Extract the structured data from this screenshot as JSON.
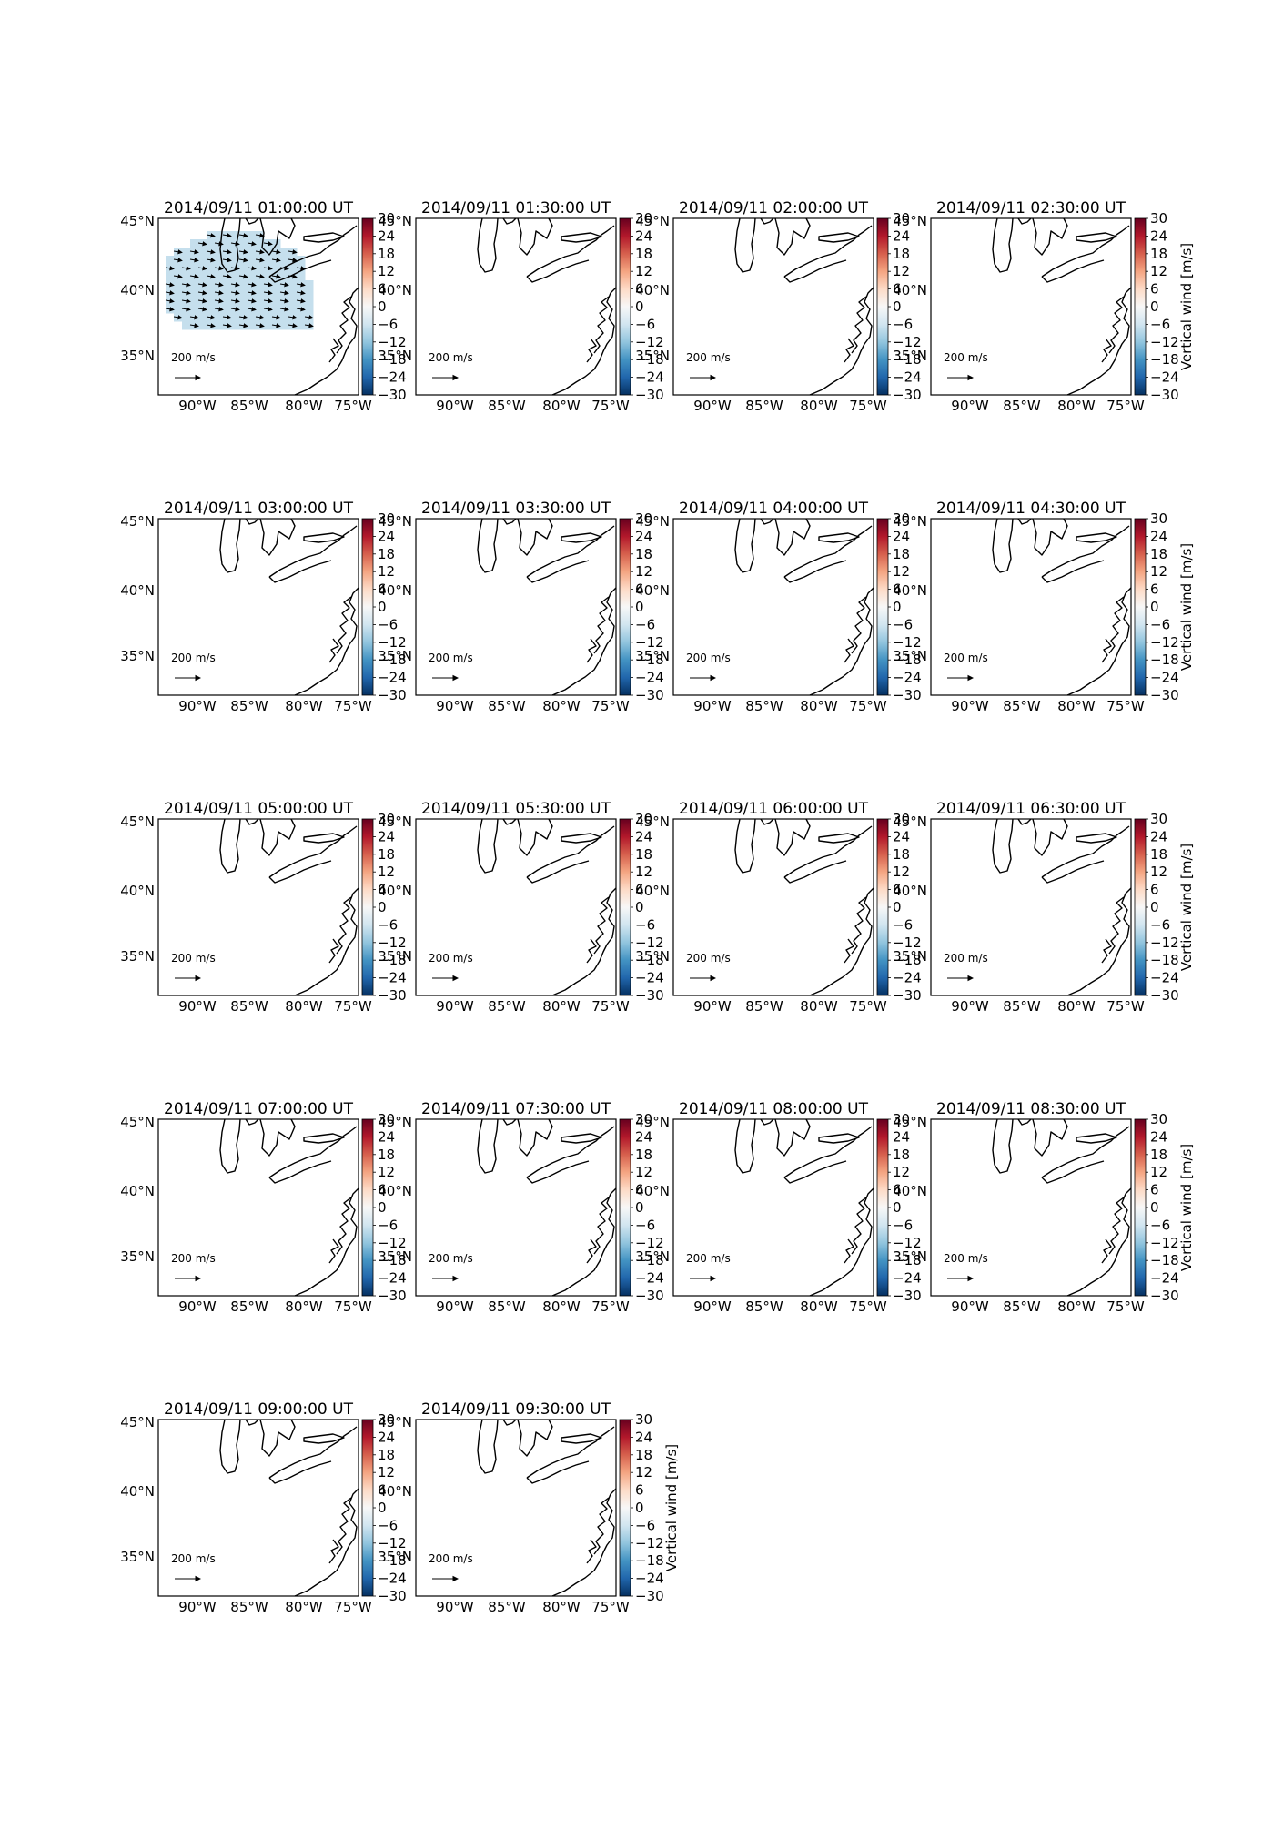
{
  "figure": {
    "panels": [
      {
        "title": "2014/09/11 01:00:00 UT",
        "has_field": true
      },
      {
        "title": "2014/09/11 01:30:00 UT",
        "has_field": false
      },
      {
        "title": "2014/09/11 02:00:00 UT",
        "has_field": false
      },
      {
        "title": "2014/09/11 02:30:00 UT",
        "has_field": false
      },
      {
        "title": "2014/09/11 03:00:00 UT",
        "has_field": false
      },
      {
        "title": "2014/09/11 03:30:00 UT",
        "has_field": false
      },
      {
        "title": "2014/09/11 04:00:00 UT",
        "has_field": false
      },
      {
        "title": "2014/09/11 04:30:00 UT",
        "has_field": false
      },
      {
        "title": "2014/09/11 05:00:00 UT",
        "has_field": false
      },
      {
        "title": "2014/09/11 05:30:00 UT",
        "has_field": false
      },
      {
        "title": "2014/09/11 06:00:00 UT",
        "has_field": false
      },
      {
        "title": "2014/09/11 06:30:00 UT",
        "has_field": false
      },
      {
        "title": "2014/09/11 07:00:00 UT",
        "has_field": false
      },
      {
        "title": "2014/09/11 07:30:00 UT",
        "has_field": false
      },
      {
        "title": "2014/09/11 08:00:00 UT",
        "has_field": false
      },
      {
        "title": "2014/09/11 08:30:00 UT",
        "has_field": false
      },
      {
        "title": "2014/09/11 09:00:00 UT",
        "has_field": false
      },
      {
        "title": "2014/09/11 09:30:00 UT",
        "has_field": false
      }
    ],
    "lat_ticks": [
      "45°N",
      "40°N",
      "35°N"
    ],
    "lon_ticks": [
      "90°W",
      "85°W",
      "80°W",
      "75°W"
    ],
    "colorbar": {
      "label": "Vertical wind [m/s]",
      "ticks": [
        "30",
        "24",
        "18",
        "12",
        "6",
        "0",
        "−6",
        "−12",
        "−18",
        "−24",
        "−30"
      ],
      "colormap": "RdBu_r",
      "range": [
        -30,
        30
      ]
    },
    "quiver_key": {
      "value": "200",
      "unit": "m/s"
    },
    "field_color": "#c5dfed",
    "coast_color": "#000000"
  }
}
